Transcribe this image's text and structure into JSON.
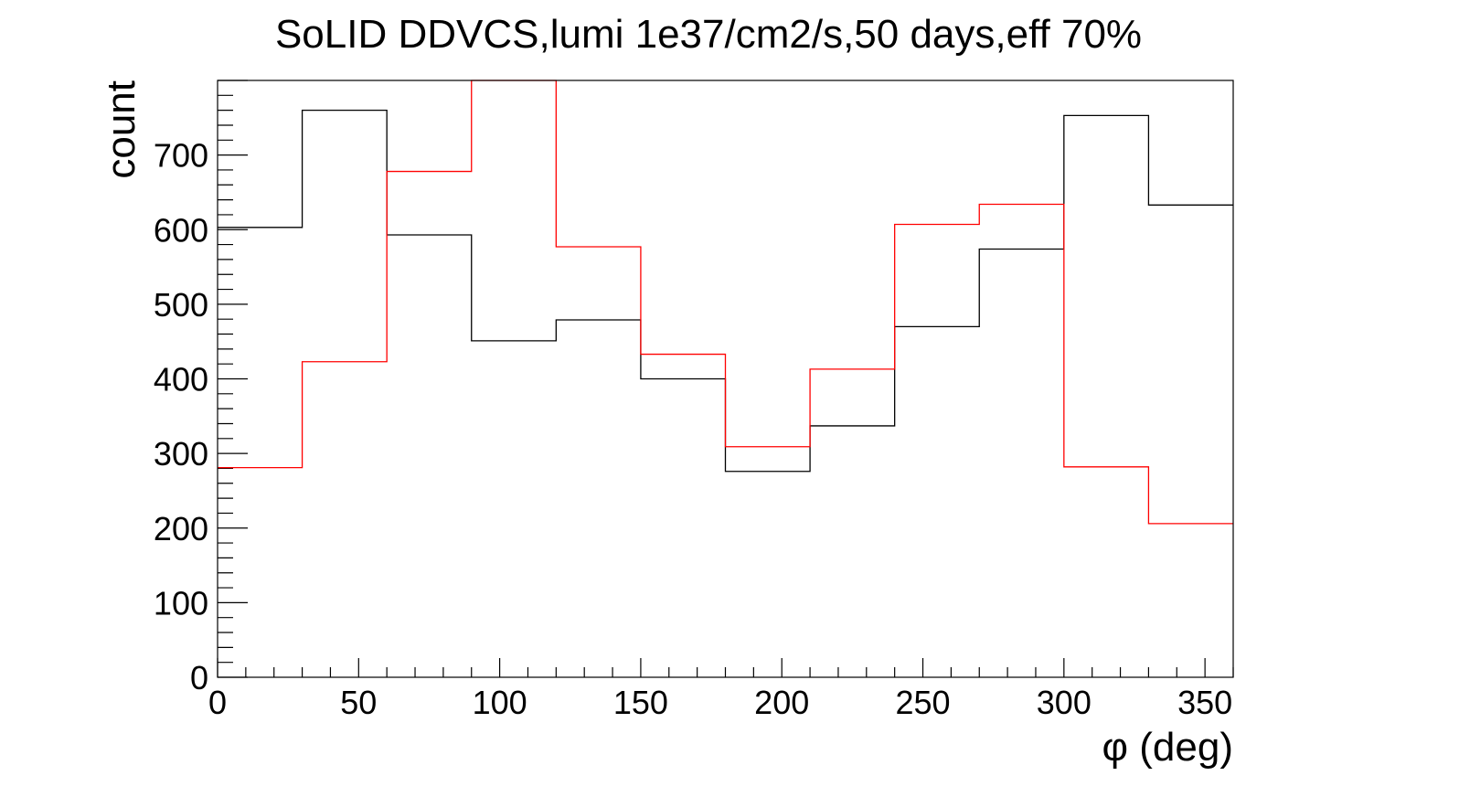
{
  "chart_data": {
    "type": "histogram",
    "title": "SoLID DDVCS,lumi 1e37/cm2/s,50 days,eff 70%",
    "xlabel": "φ (deg)",
    "ylabel": "count",
    "xlim": [
      0,
      360
    ],
    "ylim": [
      0,
      800
    ],
    "bin_edges": [
      0,
      30,
      60,
      90,
      120,
      150,
      180,
      210,
      240,
      270,
      300,
      330,
      360
    ],
    "x_ticks": [
      0,
      50,
      100,
      150,
      200,
      250,
      300,
      350
    ],
    "y_ticks": [
      0,
      100,
      200,
      300,
      400,
      500,
      600,
      700
    ],
    "grid": false,
    "legend": "none",
    "series": [
      {
        "color": "#000000",
        "values": [
          603,
          760,
          593,
          451,
          479,
          400,
          276,
          337,
          470,
          574,
          753,
          633
        ]
      },
      {
        "color": "#ff0000",
        "values": [
          281,
          423,
          678,
          800,
          577,
          433,
          309,
          413,
          607,
          634,
          282,
          206
        ]
      }
    ]
  }
}
